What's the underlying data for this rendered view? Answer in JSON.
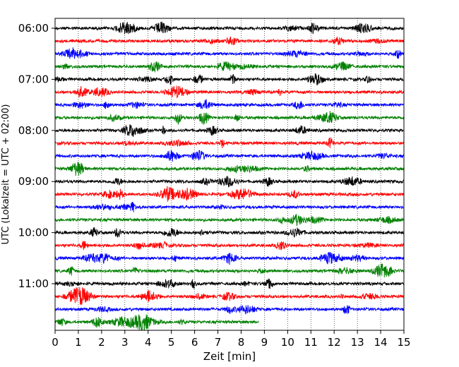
{
  "chart_data": {
    "type": "line",
    "title": "",
    "xlabel": "Zeit  [min]",
    "ylabel": "UTC (Lokalzeit = UTC + 02:00)",
    "xlim": [
      0,
      15
    ],
    "x_ticks": [
      "0",
      "1",
      "2",
      "3",
      "4",
      "5",
      "6",
      "7",
      "8",
      "9",
      "10",
      "11",
      "12",
      "13",
      "14",
      "15"
    ],
    "y_ticks": [
      "06:00",
      "07:00",
      "08:00",
      "09:00",
      "10:00",
      "11:00"
    ],
    "grid": "vertical dotted at each minute",
    "trace_colors": [
      "#000000",
      "#ff0000",
      "#0000ff",
      "#008000"
    ],
    "trace_interval_min": 15,
    "first_trace_start": "06:00",
    "trace_count": 24,
    "last_trace_end_min": 8.75,
    "description_note": "Helicorder seismogram: each row is a 15-minute trace; colors cycle black, red, blue, green."
  }
}
